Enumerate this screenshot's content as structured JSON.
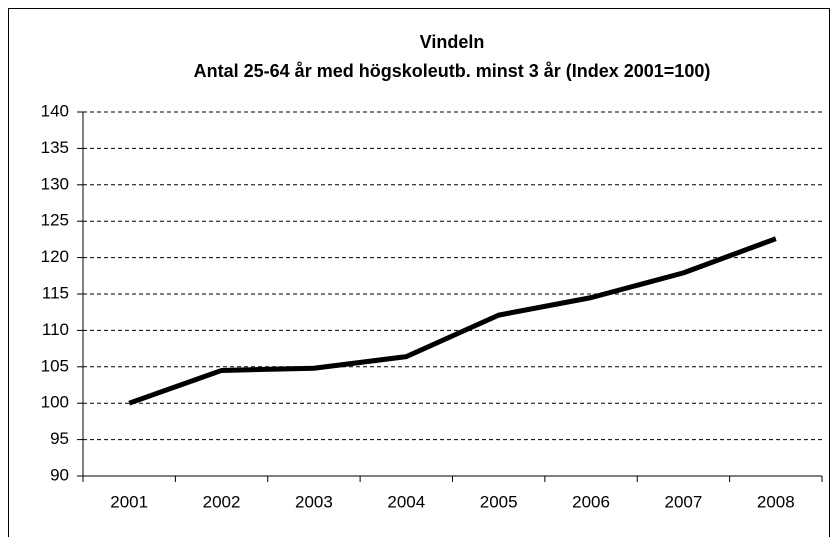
{
  "chart_data": {
    "type": "line",
    "title": "Vindeln",
    "subtitle": "Antal 25-64 år med högskoleutb. minst 3 år (Index 2001=100)",
    "categories": [
      "2001",
      "2002",
      "2003",
      "2004",
      "2005",
      "2006",
      "2007",
      "2008"
    ],
    "series": [
      {
        "name": "Vindeln",
        "color": "#000000",
        "values": [
          100,
          104.5,
          104.8,
          106.4,
          112.1,
          114.5,
          117.9,
          122.6
        ]
      }
    ],
    "ylim": [
      90,
      140
    ],
    "yticks": [
      90,
      95,
      100,
      105,
      110,
      115,
      120,
      125,
      130,
      135,
      140
    ],
    "grid": true
  }
}
